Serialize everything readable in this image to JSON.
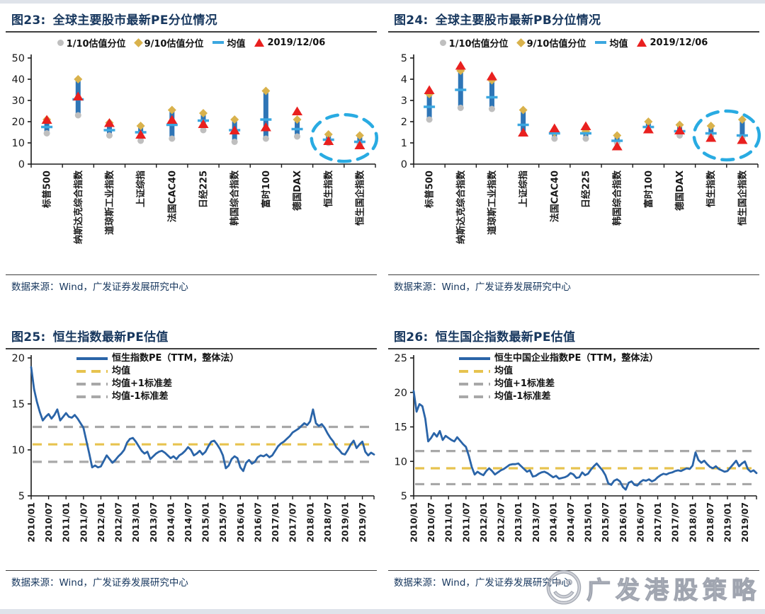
{
  "page": {
    "source_label": "数据来源：Wind，广发证券发展研究中心",
    "watermark_text": "广发港股策略",
    "watermark_icon": "smiley-face"
  },
  "colors": {
    "title_navy": "#17375E",
    "bar_blue": "#2E75B6",
    "marker_gray": "#BFBFBF",
    "marker_gold": "#D9B24C",
    "mean_cyan": "#3BA7E0",
    "current_red": "#E9201F",
    "line_blue": "#2A64A8",
    "mean_dash_gold": "#E7C34F",
    "band_gray": "#A8A8A8",
    "highlight_cyan": "#29ABE2",
    "axis_black": "#1A1A1A"
  },
  "chart_data": [
    {
      "id": "fig23",
      "type": "range-dot",
      "fig_label": "图23:",
      "title": "全球主要股市最新PE分位情况",
      "legend": [
        "1/10估值分位",
        "9/10估值分位",
        "均值",
        "2019/12/06"
      ],
      "categories": [
        "标普500",
        "纳斯达克综合指数",
        "道琼斯工业指数",
        "上证综指",
        "法国CAC40",
        "日经225",
        "韩国综合指数",
        "富时100",
        "德国DAX",
        "恒生指数",
        "恒生国企指数"
      ],
      "series": [
        {
          "name": "1/10估值分位",
          "role": "low",
          "values": [
            14.5,
            23.0,
            13.5,
            11.0,
            12.0,
            16.0,
            10.5,
            12.0,
            13.0,
            10.0,
            9.5
          ]
        },
        {
          "name": "9/10估值分位",
          "role": "high",
          "values": [
            21.0,
            40.0,
            19.5,
            18.0,
            25.5,
            24.0,
            21.0,
            34.5,
            21.0,
            14.0,
            13.5
          ]
        },
        {
          "name": "均值",
          "role": "mean",
          "values": [
            17.5,
            30.5,
            16.0,
            15.0,
            18.5,
            20.5,
            16.0,
            21.0,
            16.5,
            11.5,
            10.5
          ]
        },
        {
          "name": "2019/12/06",
          "role": "current",
          "values": [
            20.5,
            31.5,
            19.0,
            13.5,
            20.5,
            18.5,
            15.5,
            17.0,
            24.5,
            10.5,
            8.5
          ]
        }
      ],
      "ylim": [
        0,
        50
      ],
      "yticks": [
        0,
        10,
        20,
        30,
        40,
        50
      ],
      "highlight": {
        "categories": [
          "恒生指数",
          "恒生国企指数"
        ],
        "center_value": 12.3,
        "radius_value": 11.0
      }
    },
    {
      "id": "fig24",
      "type": "range-dot",
      "fig_label": "图24:",
      "title": "全球主要股市最新PB分位情况",
      "legend": [
        "1/10估值分位",
        "9/10估值分位",
        "均值",
        "2019/12/06"
      ],
      "categories": [
        "标普500",
        "纳斯达克综合指数",
        "道琼斯工业指数",
        "上证综指",
        "法国CAC40",
        "日经225",
        "韩国综合指数",
        "富时100",
        "德国DAX",
        "恒生指数",
        "恒生国企指数"
      ],
      "series": [
        {
          "name": "1/10估值分位",
          "role": "low",
          "values": [
            2.1,
            2.65,
            2.6,
            1.45,
            1.2,
            1.2,
            1.0,
            1.6,
            1.35,
            1.3,
            1.25
          ]
        },
        {
          "name": "9/10估值分位",
          "role": "high",
          "values": [
            3.3,
            4.4,
            3.95,
            2.55,
            1.5,
            1.55,
            1.35,
            2.0,
            1.85,
            1.8,
            2.1
          ]
        },
        {
          "name": "均值",
          "role": "mean",
          "values": [
            2.7,
            3.5,
            3.15,
            1.85,
            1.45,
            1.45,
            1.1,
            1.75,
            1.55,
            1.45,
            1.35
          ]
        },
        {
          "name": "2019/12/06",
          "role": "current",
          "values": [
            3.45,
            4.6,
            4.1,
            1.45,
            1.65,
            1.75,
            0.8,
            1.6,
            1.55,
            1.2,
            1.1
          ]
        }
      ],
      "ylim": [
        0,
        5
      ],
      "yticks": [
        0,
        1,
        2,
        3,
        4,
        5
      ],
      "highlight": {
        "categories": [
          "恒生指数",
          "恒生国企指数"
        ],
        "center_value": 1.35,
        "radius_value": 1.15
      }
    },
    {
      "id": "fig25",
      "type": "line",
      "fig_label": "图25:",
      "title": "恒生指数最新PE估值",
      "legend": [
        "恒生指数PE（TTM，整体法）",
        "均值",
        "均值+1标准差",
        "均值-1标准差"
      ],
      "x_tick_labels": [
        "2010/01",
        "2010/07",
        "2011/01",
        "2011/07",
        "2012/01",
        "2012/07",
        "2013/01",
        "2013/07",
        "2014/01",
        "2014/07",
        "2015/01",
        "2015/07",
        "2016/01",
        "2016/07",
        "2017/01",
        "2017/07",
        "2018/01",
        "2018/07",
        "2019/01",
        "2019/07"
      ],
      "tick_every_points": 6,
      "values": [
        19.0,
        16.6,
        15.2,
        14.1,
        13.2,
        13.6,
        13.9,
        13.4,
        13.8,
        14.4,
        13.2,
        13.6,
        14.0,
        13.6,
        13.5,
        13.8,
        13.4,
        12.9,
        12.4,
        11.0,
        9.6,
        8.1,
        8.3,
        8.1,
        8.2,
        8.8,
        9.4,
        9.0,
        8.6,
        8.9,
        9.3,
        9.6,
        10.0,
        10.8,
        11.2,
        11.3,
        10.9,
        10.4,
        9.9,
        9.6,
        9.8,
        9.0,
        9.3,
        9.6,
        9.8,
        9.9,
        9.7,
        9.4,
        9.1,
        9.3,
        9.0,
        9.4,
        9.6,
        9.9,
        10.3,
        10.0,
        9.4,
        9.6,
        9.9,
        9.5,
        9.8,
        10.4,
        10.9,
        11.0,
        10.6,
        10.1,
        9.4,
        8.0,
        8.3,
        9.0,
        9.3,
        9.1,
        8.1,
        7.7,
        8.6,
        8.9,
        8.5,
        8.7,
        9.2,
        9.4,
        9.3,
        9.5,
        9.2,
        9.4,
        9.9,
        10.4,
        10.7,
        10.9,
        11.2,
        11.5,
        11.9,
        12.1,
        12.3,
        12.6,
        12.9,
        12.7,
        13.1,
        14.4,
        12.9,
        12.6,
        12.8,
        12.4,
        11.8,
        11.3,
        10.9,
        10.3,
        10.0,
        9.6,
        9.5,
        10.0,
        10.6,
        11.0,
        10.2,
        10.6,
        10.9,
        9.8,
        9.4,
        9.7,
        9.5
      ],
      "mean": 10.6,
      "mean_plus_std": 12.5,
      "mean_minus_std": 8.7,
      "ylim": [
        5,
        20
      ],
      "yticks": [
        5,
        10,
        15,
        20
      ]
    },
    {
      "id": "fig26",
      "type": "line",
      "fig_label": "图26:",
      "title": "恒生国企指数最新PE估值",
      "legend": [
        "恒生中国企业指数PE（TTM，整体法）",
        "均值",
        "均值+1标准差",
        "均值-1标准差"
      ],
      "x_tick_labels": [
        "2010/01",
        "2010/07",
        "2011/01",
        "2011/07",
        "2012/01",
        "2012/07",
        "2013/01",
        "2013/07",
        "2014/01",
        "2014/07",
        "2015/01",
        "2015/07",
        "2016/01",
        "2016/07",
        "2017/01",
        "2017/07",
        "2018/01",
        "2018/07",
        "2019/01",
        "2019/07"
      ],
      "tick_every_points": 6,
      "values": [
        20.2,
        17.2,
        18.3,
        18.0,
        16.2,
        12.9,
        13.4,
        14.1,
        13.6,
        14.4,
        13.1,
        13.7,
        13.4,
        13.1,
        12.9,
        13.5,
        13.0,
        12.5,
        12.1,
        10.8,
        9.2,
        8.1,
        8.5,
        8.2,
        8.0,
        8.6,
        9.0,
        8.6,
        8.1,
        8.4,
        8.7,
        8.9,
        9.2,
        9.5,
        9.6,
        9.6,
        9.7,
        9.3,
        8.9,
        8.5,
        8.7,
        7.8,
        7.9,
        8.2,
        8.4,
        8.5,
        8.3,
        8.0,
        7.7,
        7.9,
        7.5,
        7.6,
        7.7,
        7.9,
        8.3,
        8.1,
        7.6,
        7.7,
        8.4,
        8.0,
        8.2,
        8.8,
        9.3,
        9.7,
        9.2,
        8.7,
        8.0,
        6.8,
        6.6,
        7.2,
        7.4,
        7.1,
        6.3,
        5.9,
        6.9,
        7.1,
        6.6,
        6.5,
        7.0,
        7.3,
        7.2,
        7.4,
        7.1,
        7.3,
        7.7,
        8.0,
        8.2,
        8.1,
        8.3,
        8.4,
        8.6,
        8.7,
        8.6,
        8.8,
        9.0,
        8.9,
        9.4,
        11.3,
        10.2,
        9.8,
        10.1,
        9.6,
        9.2,
        9.0,
        9.3,
        8.9,
        8.7,
        8.5,
        8.6,
        9.1,
        9.6,
        10.1,
        9.3,
        9.7,
        10.0,
        8.9,
        8.5,
        8.7,
        8.3
      ],
      "mean": 9.0,
      "mean_plus_std": 11.5,
      "mean_minus_std": 6.7,
      "ylim": [
        5,
        25
      ],
      "yticks": [
        5,
        10,
        15,
        20,
        25
      ]
    }
  ]
}
